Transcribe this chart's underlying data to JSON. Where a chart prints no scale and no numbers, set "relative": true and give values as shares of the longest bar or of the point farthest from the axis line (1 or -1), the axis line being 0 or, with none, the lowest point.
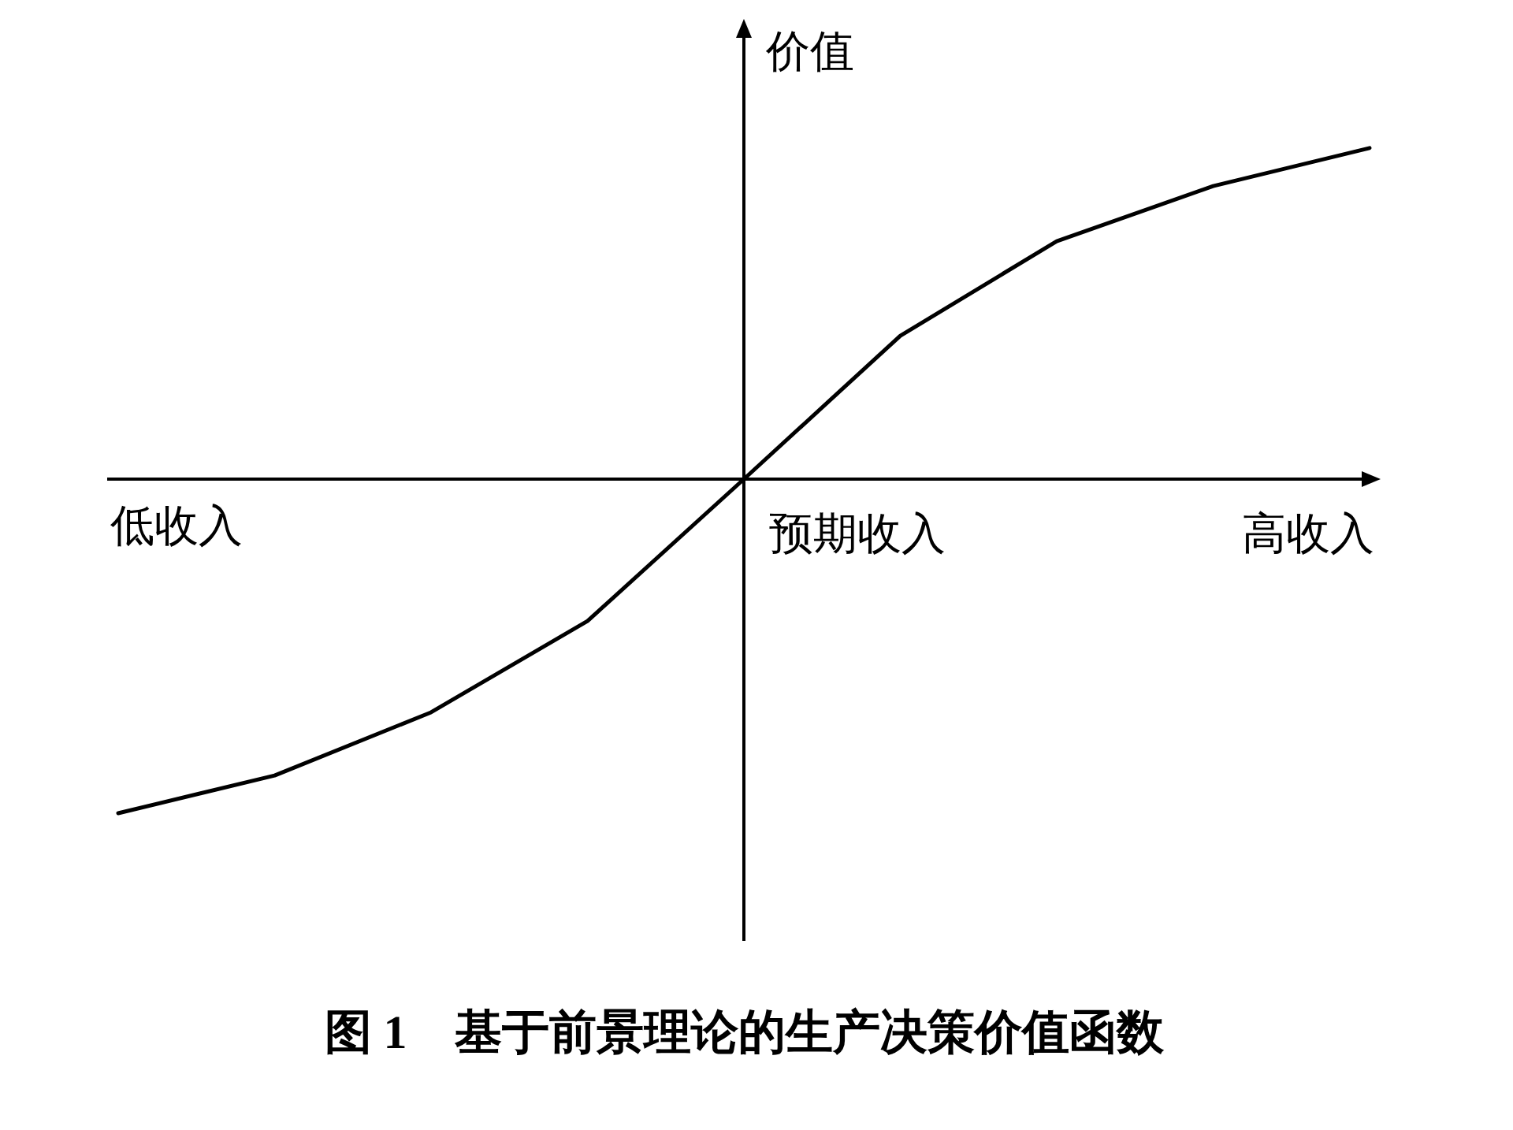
{
  "chart_data": {
    "type": "line",
    "relative": true,
    "title": "图 1　基于前景理论的生产决策价值函数",
    "ylabel": "价值",
    "categories": [
      null,
      null,
      null,
      null,
      null,
      null,
      null,
      null,
      null
    ],
    "series": [
      {
        "color": "#000000",
        "values": [
          -1,
          -0.887,
          -0.698,
          -0.425,
          0,
          0.429,
          0.712,
          0.877,
          0.991
        ]
      }
    ],
    "annotations": [
      "低收入",
      "预期收入",
      "高收入"
    ],
    "marker": "none",
    "line_style": "solid"
  }
}
